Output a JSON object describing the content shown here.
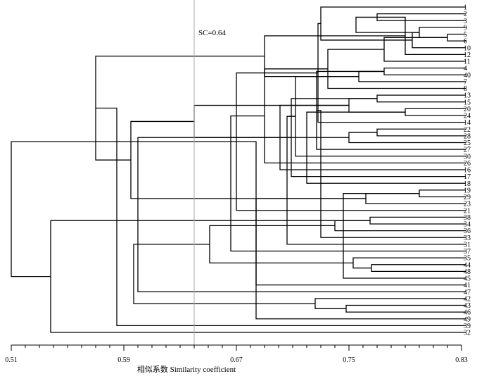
{
  "chart_data": {
    "type": "dendrogram",
    "xlabel": "相似系数 Similarity coefficient",
    "xlim": [
      0.51,
      0.83
    ],
    "x_ticks": [
      "0.51",
      "0.59",
      "0.67",
      "0.75",
      "0.83"
    ],
    "threshold": {
      "label": "SC=0.64",
      "value": 0.64
    },
    "leaves": [
      "1",
      "2",
      "3",
      "9",
      "5",
      "6",
      "10",
      "12",
      "11",
      "4",
      "40",
      "7",
      "8",
      "13",
      "15",
      "20",
      "24",
      "14",
      "22",
      "28",
      "25",
      "27",
      "30",
      "26",
      "16",
      "17",
      "18",
      "19",
      "29",
      "23",
      "21",
      "38",
      "34",
      "36",
      "33",
      "31",
      "37",
      "35",
      "44",
      "48",
      "45",
      "41",
      "47",
      "42",
      "43",
      "46",
      "49",
      "39",
      "32"
    ],
    "merges": [
      {
        "a": "2",
        "b": "3",
        "h": 0.77
      },
      {
        "a": "5",
        "b": "6",
        "h": 0.82
      },
      {
        "a": "9",
        "b": "5+6",
        "h": 0.8
      },
      {
        "a": "9+5+6",
        "b": "10",
        "h": 0.795
      },
      {
        "a": "g1",
        "b": "12",
        "h": 0.79
      },
      {
        "a": "g2",
        "b": "11",
        "h": 0.775
      },
      {
        "a": "2+3",
        "b": "g3",
        "h": 0.755
      },
      {
        "a": "1",
        "b": "g4",
        "h": 0.73
      },
      {
        "a": "4",
        "b": "40",
        "h": 0.775
      },
      {
        "a": "4+40",
        "b": "7",
        "h": 0.757
      },
      {
        "a": "g6",
        "b": "8",
        "h": 0.735
      },
      {
        "a": "1..11",
        "b": "4..8",
        "h": 0.69
      },
      {
        "a": "20",
        "b": "24",
        "h": 0.79
      },
      {
        "a": "13",
        "b": "15",
        "h": 0.77
      },
      {
        "a": "13+15",
        "b": "20+24",
        "h": 0.75
      },
      {
        "a": "g8",
        "b": "14",
        "h": 0.728
      },
      {
        "a": "22",
        "b": "28",
        "h": 0.77
      },
      {
        "a": "22+28",
        "b": "25",
        "h": 0.75
      },
      {
        "a": "g9",
        "b": "27",
        "h": 0.727
      },
      {
        "a": "g10",
        "b": "30",
        "h": 0.712
      },
      {
        "a": "g11",
        "b": "26",
        "h": 0.69
      },
      {
        "a": "13..14",
        "b": "22..26",
        "h": 0.64
      },
      {
        "a": "19",
        "b": "29",
        "h": 0.8
      },
      {
        "a": "19+29",
        "b": "23",
        "h": 0.762
      },
      {
        "a": "18",
        "b": "g13",
        "h": 0.72
      },
      {
        "a": "17",
        "b": "g14",
        "h": 0.709
      },
      {
        "a": "16",
        "b": "g15",
        "h": 0.701
      },
      {
        "a": "g16",
        "b": "21",
        "h": 0.67
      },
      {
        "a": "13..26",
        "b": "16..21",
        "h": 0.595
      },
      {
        "a": "1..8",
        "b": "13..21",
        "h": 0.57
      },
      {
        "a": "38",
        "b": "34",
        "h": 0.765
      },
      {
        "a": "38+34",
        "b": "36",
        "h": 0.74
      },
      {
        "a": "g19",
        "b": "33",
        "h": 0.73
      },
      {
        "a": "g20",
        "b": "31",
        "h": 0.706
      },
      {
        "a": "g21",
        "b": "37",
        "h": 0.666
      },
      {
        "a": "44",
        "b": "48",
        "h": 0.766
      },
      {
        "a": "35",
        "b": "44+48",
        "h": 0.753
      },
      {
        "a": "g23",
        "b": "45",
        "h": 0.746
      },
      {
        "a": "g24",
        "b": "41",
        "h": 0.684
      },
      {
        "a": "38..37",
        "b": "35..41",
        "h": 0.651
      },
      {
        "a": "g26",
        "b": "47",
        "h": 0.6
      },
      {
        "a": "43",
        "b": "46",
        "h": 0.748
      },
      {
        "a": "42",
        "b": "43+46",
        "h": 0.726
      },
      {
        "a": "g28",
        "b": "49",
        "h": 0.684
      },
      {
        "a": "38..47",
        "b": "42..49",
        "h": 0.597
      },
      {
        "a": "g30",
        "b": "39",
        "h": 0.585
      },
      {
        "a": "g31",
        "b": "32",
        "h": 0.538
      },
      {
        "a": "1..21",
        "b": "38..32",
        "h": 0.51
      }
    ]
  }
}
